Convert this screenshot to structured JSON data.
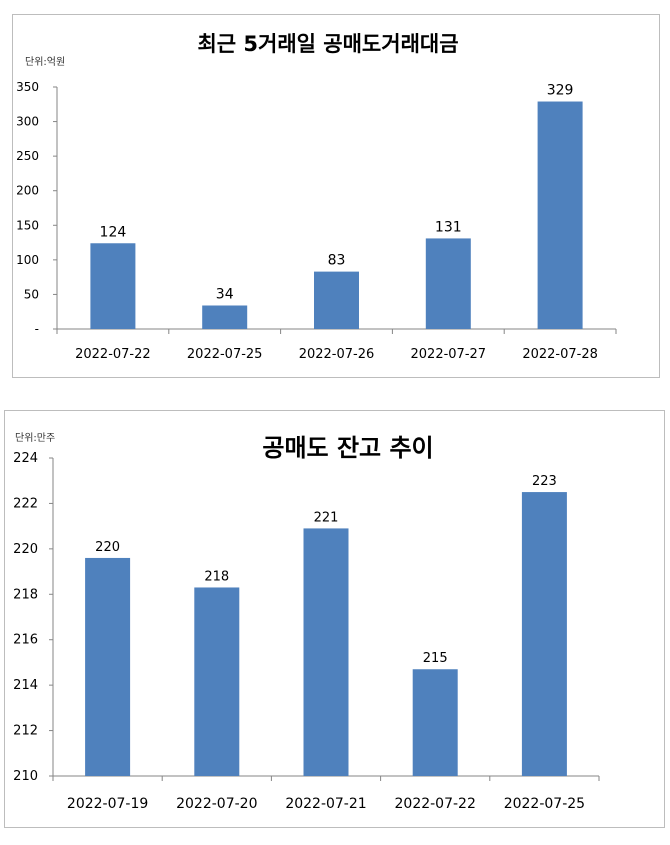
{
  "chart_data": [
    {
      "type": "bar",
      "title": "최근 5거래일 공매도거래대금",
      "unit_label": "단위:억원",
      "categories": [
        "2022-07-22",
        "2022-07-25",
        "2022-07-26",
        "2022-07-27",
        "2022-07-28"
      ],
      "values": [
        124,
        34,
        83,
        131,
        329
      ],
      "data_labels": [
        "124",
        "34",
        "83",
        "131",
        "329"
      ],
      "ylim": [
        0,
        350
      ],
      "y_ticks": [
        "-",
        "50",
        "100",
        "150",
        "200",
        "250",
        "300",
        "350"
      ],
      "grid": false,
      "bar_color": "#4f81bd"
    },
    {
      "type": "bar",
      "title": "공매도 잔고 추이",
      "unit_label": "단위:만주",
      "categories": [
        "2022-07-19",
        "2022-07-20",
        "2022-07-21",
        "2022-07-22",
        "2022-07-25"
      ],
      "values": [
        219.6,
        218.3,
        220.9,
        214.7,
        222.5
      ],
      "data_labels": [
        "220",
        "218",
        "221",
        "215",
        "223"
      ],
      "ylim": [
        210,
        224
      ],
      "y_ticks": [
        "210",
        "212",
        "214",
        "216",
        "218",
        "220",
        "222",
        "224"
      ],
      "grid": false,
      "bar_color": "#4f81bd"
    }
  ]
}
